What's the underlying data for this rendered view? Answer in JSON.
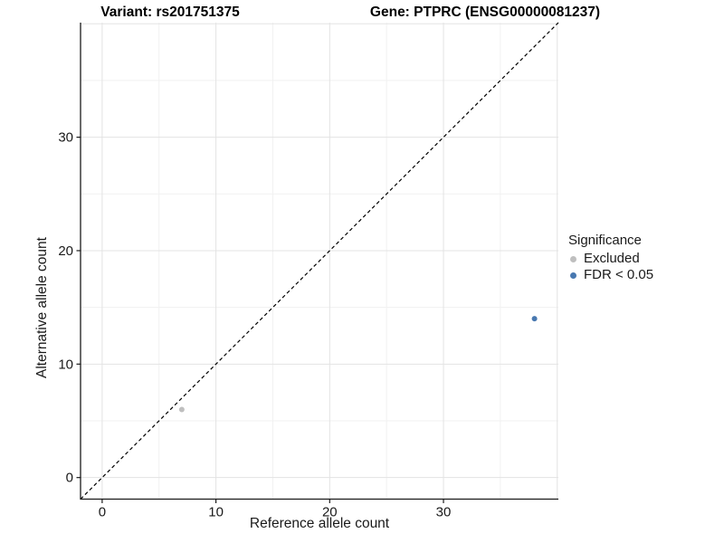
{
  "titles": {
    "variant": "Variant: rs201751375",
    "gene": "Gene: PTPRC (ENSG00000081237)"
  },
  "axes": {
    "x_label": "Reference allele count",
    "y_label": "Alternative allele count"
  },
  "legend": {
    "title": "Significance",
    "position": "right",
    "items": [
      {
        "label": "Excluded",
        "color": "#bfbfbf"
      },
      {
        "label": "FDR < 0.05",
        "color": "#4878b0"
      }
    ]
  },
  "chart_data": {
    "type": "scatter",
    "xlabel": "Reference allele count",
    "ylabel": "Alternative allele count",
    "xlim": [
      -1.9,
      40.1
    ],
    "ylim": [
      -1.9,
      40.1
    ],
    "x_ticks": [
      0,
      10,
      20,
      30
    ],
    "y_ticks": [
      0,
      10,
      20,
      30
    ],
    "grid_major": [
      0,
      10,
      20,
      30,
      40
    ],
    "grid_minor": [
      5,
      15,
      25,
      35
    ],
    "grid_major_color": "#e3e3e3",
    "grid_minor_color": "#f1f1f1",
    "axis_line_color": "#1a1a1a",
    "tick_label_color": "#1a1a1a",
    "identity_line": {
      "style": "dashed",
      "from": -1.9,
      "to": 40.1,
      "color": "#000000"
    },
    "series": [
      {
        "name": "Excluded",
        "color": "#bfbfbf",
        "points": [
          {
            "x": 7,
            "y": 6
          }
        ]
      },
      {
        "name": "FDR < 0.05",
        "color": "#4878b0",
        "points": [
          {
            "x": 38,
            "y": 14
          }
        ]
      }
    ],
    "background": "#ffffff"
  }
}
